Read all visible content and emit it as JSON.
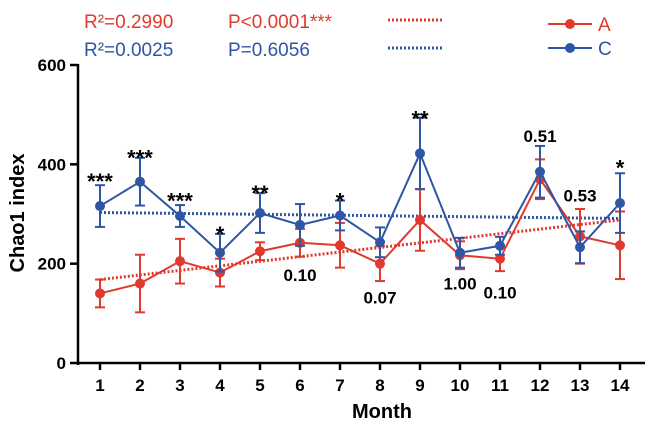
{
  "chart_data": {
    "type": "line",
    "xlabel": "Month",
    "ylabel": "Chao1 index",
    "ylim": [
      0,
      600
    ],
    "yticks": [
      0,
      200,
      400,
      600
    ],
    "x": [
      1,
      2,
      3,
      4,
      5,
      6,
      7,
      8,
      9,
      10,
      11,
      12,
      13,
      14
    ],
    "series": [
      {
        "name": "A",
        "color": "#e03a2f",
        "values": [
          140,
          160,
          205,
          182,
          225,
          242,
          237,
          200,
          288,
          217,
          210,
          370,
          255,
          237
        ],
        "errors": [
          28,
          58,
          45,
          28,
          18,
          28,
          45,
          35,
          62,
          28,
          25,
          40,
          55,
          68
        ],
        "trend": [
          168,
          288
        ]
      },
      {
        "name": "C",
        "color": "#2e56a4",
        "values": [
          316,
          365,
          296,
          222,
          302,
          278,
          297,
          243,
          422,
          222,
          236,
          385,
          233,
          322
        ],
        "errors": [
          42,
          48,
          22,
          38,
          40,
          42,
          30,
          30,
          72,
          30,
          18,
          52,
          32,
          60
        ],
        "trend": [
          303,
          291
        ]
      }
    ],
    "stats": {
      "A": {
        "r2": "R²=0.2990",
        "p": "P<0.0001***"
      },
      "C": {
        "r2": "R²=0.0025",
        "p": "P=0.6056"
      }
    },
    "annotations": [
      {
        "x": 1,
        "text": "***",
        "kind": "star",
        "y": 375
      },
      {
        "x": 2,
        "text": "***",
        "kind": "star",
        "y": 422
      },
      {
        "x": 3,
        "text": "***",
        "kind": "star",
        "y": 335
      },
      {
        "x": 4,
        "text": "*",
        "kind": "star",
        "y": 268
      },
      {
        "x": 5,
        "text": "**",
        "kind": "star",
        "y": 350
      },
      {
        "x": 6,
        "text": "0.10",
        "kind": "p",
        "y": 165
      },
      {
        "x": 7,
        "text": "*",
        "kind": "star",
        "y": 335
      },
      {
        "x": 8,
        "text": "0.07",
        "kind": "p",
        "y": 120
      },
      {
        "x": 9,
        "text": "**",
        "kind": "star",
        "y": 500
      },
      {
        "x": 10,
        "text": "1.00",
        "kind": "p",
        "y": 148
      },
      {
        "x": 11,
        "text": "0.10",
        "kind": "p",
        "y": 130
      },
      {
        "x": 12,
        "text": "0.51",
        "kind": "p",
        "y": 445
      },
      {
        "x": 13,
        "text": "0.53",
        "kind": "p",
        "y": 325
      },
      {
        "x": 14,
        "text": "*",
        "kind": "star",
        "y": 402
      }
    ]
  }
}
